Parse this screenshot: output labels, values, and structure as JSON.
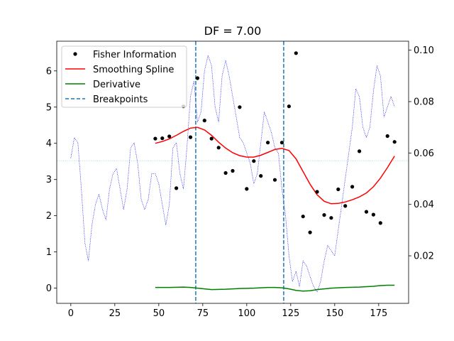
{
  "chart_data": {
    "type": "line",
    "title": "DF = 7.00",
    "xlim": [
      -8,
      192
    ],
    "ylim": [
      -0.42,
      6.82
    ],
    "y2lim": [
      0.0015,
      0.1035
    ],
    "xticks": [
      0,
      25,
      50,
      75,
      100,
      125,
      150,
      175
    ],
    "yticks": [
      0,
      1,
      2,
      3,
      4,
      5,
      6
    ],
    "y2ticks": [
      0.02,
      0.04,
      0.06,
      0.08,
      0.1
    ],
    "legend_position": "top-left",
    "legend": [
      "Fisher Information",
      "Smoothing Spline",
      "Derivative",
      "Breakpoints"
    ],
    "colors": {
      "points": "#000000",
      "spline": "#ff0000",
      "derivative": "#008000",
      "breakpoints": "#1f77b4",
      "secondary": "#0000ff",
      "secondary_mean": "#add8e6"
    },
    "series": [
      {
        "name": "Fisher Information",
        "style": "points",
        "x": [
          48,
          52,
          56,
          60,
          64,
          68,
          72,
          76,
          80,
          84,
          88,
          92,
          96,
          100,
          104,
          108,
          112,
          116,
          120,
          124,
          128,
          132,
          136,
          140,
          144,
          148,
          152,
          156,
          160,
          164,
          168,
          172,
          176,
          180,
          184
        ],
        "y": [
          4.13,
          4.14,
          4.19,
          2.76,
          5.02,
          4.17,
          5.8,
          4.63,
          4.13,
          3.88,
          3.18,
          3.24,
          5.0,
          2.74,
          3.51,
          3.1,
          4.02,
          2.99,
          4.02,
          5.02,
          6.49,
          1.98,
          1.54,
          2.66,
          2.02,
          1.94,
          2.73,
          2.27,
          2.8,
          3.78,
          2.11,
          2.03,
          1.8,
          4.2,
          4.04
        ]
      },
      {
        "name": "Smoothing Spline",
        "style": "line",
        "x": [
          48,
          52,
          56,
          60,
          64,
          68,
          72,
          76,
          80,
          84,
          88,
          92,
          96,
          100,
          104,
          108,
          112,
          116,
          120,
          124,
          128,
          132,
          136,
          140,
          144,
          148,
          152,
          156,
          160,
          164,
          168,
          172,
          176,
          180,
          184
        ],
        "y": [
          4.0,
          4.05,
          4.12,
          4.22,
          4.33,
          4.42,
          4.44,
          4.37,
          4.22,
          4.03,
          3.87,
          3.74,
          3.66,
          3.62,
          3.62,
          3.67,
          3.75,
          3.83,
          3.86,
          3.8,
          3.57,
          3.22,
          2.87,
          2.58,
          2.4,
          2.33,
          2.34,
          2.38,
          2.44,
          2.52,
          2.63,
          2.8,
          3.04,
          3.33,
          3.65
        ]
      },
      {
        "name": "Derivative",
        "style": "line",
        "x": [
          48,
          56,
          64,
          68,
          72,
          76,
          80,
          88,
          96,
          104,
          112,
          116,
          120,
          124,
          128,
          132,
          136,
          140,
          148,
          156,
          164,
          172,
          176,
          180,
          184
        ],
        "y": [
          0.02,
          0.02,
          0.03,
          0.02,
          0.0,
          -0.02,
          -0.04,
          -0.03,
          -0.01,
          0.0,
          0.02,
          0.02,
          0.01,
          -0.02,
          -0.06,
          -0.08,
          -0.07,
          -0.04,
          0.0,
          0.02,
          0.03,
          0.05,
          0.07,
          0.08,
          0.08
        ]
      },
      {
        "name": "Breakpoints",
        "style": "vline",
        "x": [
          71,
          121
        ]
      },
      {
        "style": "dotted",
        "axis": "secondary",
        "x": [
          0,
          2,
          4,
          6,
          8,
          10,
          12,
          14,
          16,
          18,
          20,
          22,
          24,
          26,
          28,
          30,
          32,
          34,
          36,
          38,
          40,
          42,
          44,
          46,
          48,
          50,
          52,
          54,
          56,
          58,
          60,
          62,
          64,
          66,
          68,
          70,
          72,
          74,
          76,
          78,
          80,
          82,
          84,
          86,
          88,
          90,
          92,
          94,
          96,
          98,
          100,
          102,
          104,
          106,
          108,
          110,
          112,
          114,
          116,
          118,
          120,
          122,
          124,
          126,
          128,
          130,
          132,
          134,
          136,
          138,
          140,
          142,
          144,
          146,
          148,
          150,
          152,
          154,
          156,
          158,
          160,
          162,
          164,
          166,
          168,
          170,
          172,
          174,
          176,
          178,
          180,
          182,
          184
        ],
        "y": [
          0.058,
          0.066,
          0.064,
          0.046,
          0.025,
          0.018,
          0.032,
          0.04,
          0.044,
          0.038,
          0.034,
          0.046,
          0.052,
          0.054,
          0.046,
          0.038,
          0.046,
          0.062,
          0.064,
          0.056,
          0.042,
          0.038,
          0.042,
          0.052,
          0.052,
          0.048,
          0.04,
          0.032,
          0.04,
          0.062,
          0.064,
          0.052,
          0.046,
          0.062,
          0.082,
          0.088,
          0.072,
          0.076,
          0.092,
          0.098,
          0.094,
          0.078,
          0.072,
          0.09,
          0.096,
          0.09,
          0.082,
          0.074,
          0.066,
          0.064,
          0.06,
          0.056,
          0.048,
          0.052,
          0.064,
          0.076,
          0.072,
          0.068,
          0.062,
          0.06,
          0.046,
          0.036,
          0.02,
          0.01,
          0.014,
          0.008,
          0.018,
          0.016,
          0.012,
          0.008,
          0.006,
          0.01,
          0.018,
          0.024,
          0.022,
          0.02,
          0.03,
          0.04,
          0.05,
          0.06,
          0.07,
          0.085,
          0.082,
          0.07,
          0.066,
          0.07,
          0.084,
          0.094,
          0.09,
          0.074,
          0.078,
          0.082,
          0.078
        ]
      },
      {
        "style": "hline",
        "axis": "secondary",
        "y": 0.057
      }
    ]
  }
}
